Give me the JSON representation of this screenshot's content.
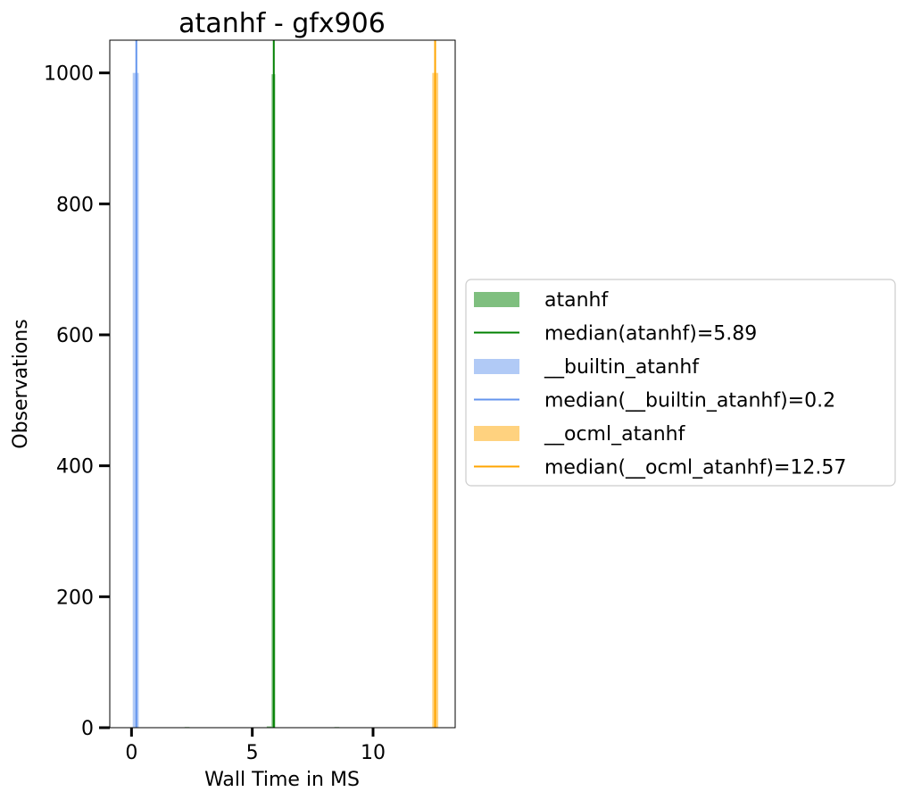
{
  "chart_data": {
    "type": "bar",
    "title": "atanhf - gfx906",
    "xlabel": "Wall Time in MS",
    "ylabel": "Observations",
    "xlim": [
      -0.9,
      13.4
    ],
    "ylim": [
      0,
      1050
    ],
    "xticks": [
      0,
      5,
      10
    ],
    "yticks": [
      0,
      200,
      400,
      600,
      800,
      1000
    ],
    "grid": false,
    "legend_placement": "center-right-outside",
    "series": [
      {
        "name": "atanhf",
        "kind": "histogram",
        "color": "#008000",
        "alpha": 0.5,
        "bins": [
          {
            "x0": 2.2,
            "x1": 2.4,
            "count": 1
          },
          {
            "x0": 5.6,
            "x1": 5.8,
            "count": 2
          },
          {
            "x0": 5.8,
            "x1": 5.95,
            "count": 998
          },
          {
            "x0": 8.4,
            "x1": 8.6,
            "count": 1
          }
        ]
      },
      {
        "name": "median(atanhf)=5.89",
        "kind": "vline",
        "x": 5.89,
        "color": "#008000"
      },
      {
        "name": "__builtin_atanhf",
        "kind": "histogram",
        "color": "#6495ED",
        "alpha": 0.5,
        "bins": [
          {
            "x0": 0.05,
            "x1": 0.3,
            "count": 1000
          }
        ]
      },
      {
        "name": "median(__builtin_atanhf)=0.2",
        "kind": "vline",
        "x": 0.2,
        "color": "#6495ED"
      },
      {
        "name": "__ocml_atanhf",
        "kind": "histogram",
        "color": "#FFA500",
        "alpha": 0.5,
        "bins": [
          {
            "x0": 12.45,
            "x1": 12.7,
            "count": 1000
          }
        ]
      },
      {
        "name": "median(__ocml_atanhf)=12.57",
        "kind": "vline",
        "x": 12.57,
        "color": "#FFA500"
      }
    ]
  }
}
